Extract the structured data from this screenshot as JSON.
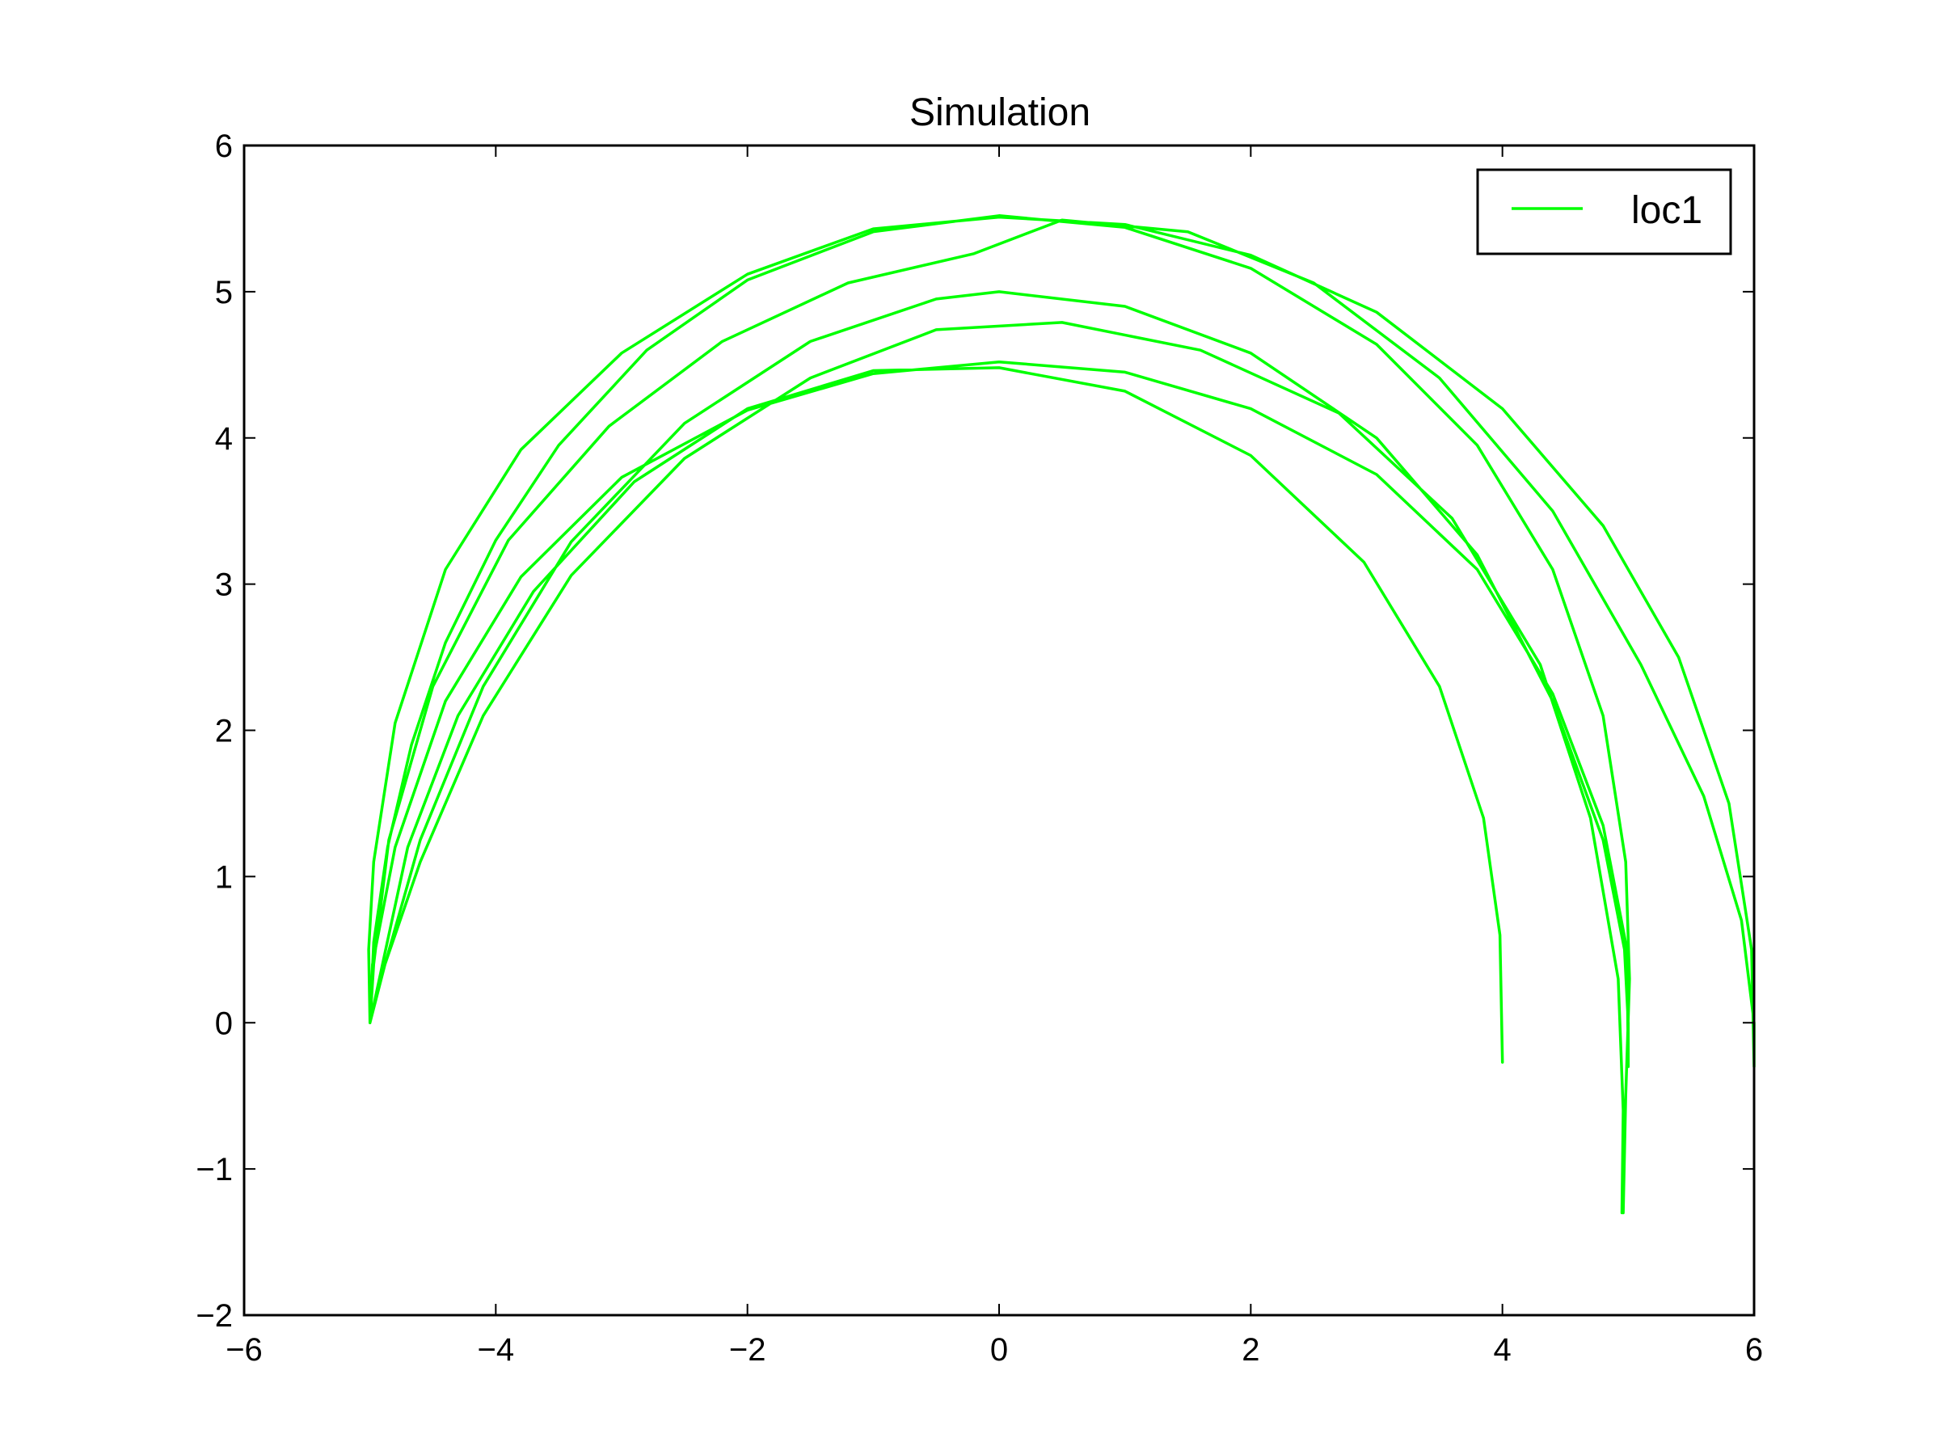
{
  "chart_data": {
    "type": "line",
    "title": "Simulation",
    "xlabel": "",
    "ylabel": "",
    "xlim": [
      -6,
      6
    ],
    "ylim": [
      -2,
      6
    ],
    "xticks": [
      -6,
      -4,
      -2,
      0,
      2,
      4,
      6
    ],
    "yticks": [
      -2,
      -1,
      0,
      1,
      2,
      3,
      4,
      5,
      6
    ],
    "xtick_labels": [
      "−6",
      "−4",
      "−2",
      "0",
      "2",
      "4",
      "6"
    ],
    "ytick_labels": [
      "−2",
      "−1",
      "0",
      "1",
      "2",
      "3",
      "4",
      "5",
      "6"
    ],
    "grid": false,
    "legend": {
      "position": "top-right",
      "entries": [
        "loc1"
      ]
    },
    "series": [
      {
        "name": "loc1",
        "color": "#00ff00",
        "points": [
          [
            -5.0,
            0.0
          ],
          [
            -4.97,
            0.55
          ],
          [
            -4.86,
            1.2
          ],
          [
            -4.67,
            1.9
          ],
          [
            -4.4,
            2.6
          ],
          [
            -4.0,
            3.3
          ],
          [
            -3.5,
            3.95
          ],
          [
            -2.8,
            4.6
          ],
          [
            -2.0,
            5.08
          ],
          [
            -1.0,
            5.41
          ],
          [
            0.0,
            5.52
          ],
          [
            1.0,
            5.44
          ],
          [
            2.0,
            5.16
          ],
          [
            3.0,
            4.64
          ],
          [
            3.8,
            3.95
          ],
          [
            4.4,
            3.1
          ],
          [
            4.8,
            2.1
          ],
          [
            4.98,
            1.1
          ],
          [
            5.01,
            0.3
          ],
          [
            4.98,
            -0.5
          ],
          [
            4.96,
            -1.3
          ],
          [
            4.95,
            -1.3
          ],
          [
            4.96,
            -0.6
          ],
          [
            4.92,
            0.3
          ],
          [
            4.7,
            1.4
          ],
          [
            4.3,
            2.45
          ],
          [
            3.6,
            3.45
          ],
          [
            2.7,
            4.17
          ],
          [
            1.6,
            4.6
          ],
          [
            0.5,
            4.79
          ],
          [
            -0.5,
            4.74
          ],
          [
            -1.5,
            4.41
          ],
          [
            -2.5,
            3.86
          ],
          [
            -3.4,
            3.06
          ],
          [
            -4.1,
            2.1
          ],
          [
            -4.6,
            1.1
          ],
          [
            -4.88,
            0.4
          ],
          [
            -5.0,
            0.0
          ],
          [
            -4.88,
            0.4
          ],
          [
            -4.6,
            1.25
          ],
          [
            -4.1,
            2.3
          ],
          [
            -3.4,
            3.29
          ],
          [
            -2.5,
            4.1
          ],
          [
            -1.5,
            4.66
          ],
          [
            -0.5,
            4.95
          ],
          [
            0.0,
            5.0
          ],
          [
            1.0,
            4.9
          ],
          [
            2.0,
            4.58
          ],
          [
            3.0,
            4.0
          ],
          [
            3.8,
            3.2
          ],
          [
            4.4,
            2.2
          ],
          [
            4.8,
            1.25
          ],
          [
            4.97,
            0.5
          ],
          [
            5.0,
            0.0
          ],
          [
            5.0,
            -0.3
          ],
          [
            5.0,
            -0.3
          ],
          [
            4.99,
            0.5
          ],
          [
            4.8,
            1.35
          ],
          [
            4.4,
            2.25
          ],
          [
            3.8,
            3.1
          ],
          [
            3.0,
            3.75
          ],
          [
            2.0,
            4.2
          ],
          [
            1.0,
            4.45
          ],
          [
            0.0,
            4.52
          ],
          [
            -1.0,
            4.44
          ],
          [
            -2.0,
            4.19
          ],
          [
            -3.0,
            3.73
          ],
          [
            -3.8,
            3.05
          ],
          [
            -4.4,
            2.2
          ],
          [
            -4.8,
            1.2
          ],
          [
            -4.98,
            0.4
          ],
          [
            -5.0,
            0.0
          ],
          [
            -4.97,
            0.4
          ],
          [
            -4.85,
            1.25
          ],
          [
            -4.5,
            2.3
          ],
          [
            -3.9,
            3.3
          ],
          [
            -3.1,
            4.08
          ],
          [
            -2.2,
            4.66
          ],
          [
            -1.2,
            5.06
          ],
          [
            -0.2,
            5.26
          ],
          [
            0.5,
            5.49
          ],
          [
            1.5,
            5.41
          ],
          [
            2.5,
            5.06
          ],
          [
            3.5,
            4.41
          ],
          [
            4.4,
            3.5
          ],
          [
            5.1,
            2.45
          ],
          [
            5.6,
            1.55
          ],
          [
            5.9,
            0.7
          ],
          [
            6.0,
            0.0
          ],
          [
            6.0,
            -0.3
          ],
          [
            6.0,
            -0.3
          ],
          [
            5.98,
            0.5
          ],
          [
            5.8,
            1.5
          ],
          [
            5.4,
            2.5
          ],
          [
            4.8,
            3.4
          ],
          [
            4.0,
            4.2
          ],
          [
            3.0,
            4.86
          ],
          [
            2.0,
            5.25
          ],
          [
            1.0,
            5.46
          ],
          [
            0.0,
            5.51
          ],
          [
            -1.0,
            5.43
          ],
          [
            -2.0,
            5.12
          ],
          [
            -3.0,
            4.58
          ],
          [
            -3.8,
            3.92
          ],
          [
            -4.4,
            3.1
          ],
          [
            -4.8,
            2.05
          ],
          [
            -4.97,
            1.1
          ],
          [
            -5.01,
            0.5
          ],
          [
            -5.0,
            0.0
          ],
          [
            -4.9,
            0.4
          ],
          [
            -4.7,
            1.2
          ],
          [
            -4.3,
            2.1
          ],
          [
            -3.7,
            2.95
          ],
          [
            -2.9,
            3.7
          ],
          [
            -2.0,
            4.2
          ],
          [
            -1.0,
            4.46
          ],
          [
            0.0,
            4.48
          ],
          [
            1.0,
            4.32
          ],
          [
            2.0,
            3.88
          ],
          [
            2.9,
            3.15
          ],
          [
            3.5,
            2.3
          ],
          [
            3.85,
            1.4
          ],
          [
            3.98,
            0.6
          ],
          [
            4.0,
            -0.27
          ]
        ]
      }
    ]
  }
}
